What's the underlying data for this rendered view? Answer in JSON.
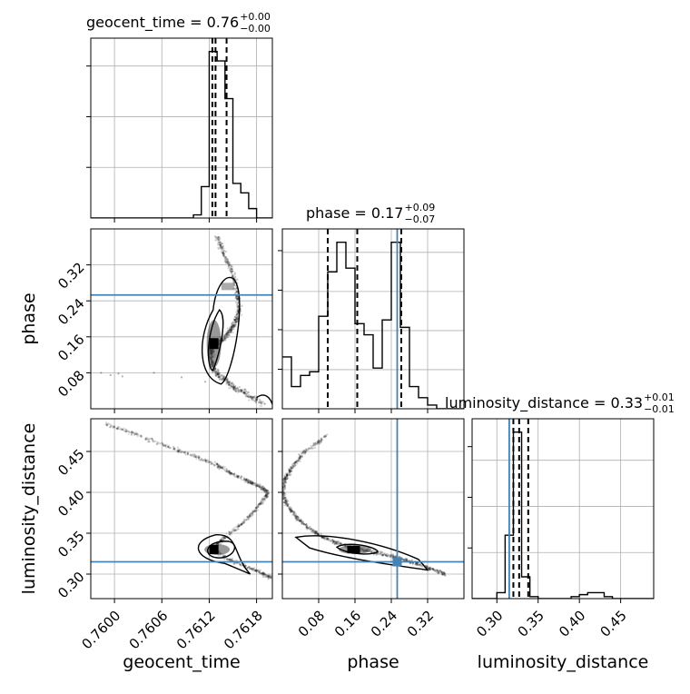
{
  "chart_data": {
    "type": "corner",
    "parameters": [
      "geocent_time",
      "phase",
      "luminosity_distance"
    ],
    "truths": {
      "geocent_time": null,
      "phase": 0.253,
      "luminosity_distance": 0.315
    },
    "truth_color": "#4682b4",
    "titles": {
      "geocent_time": {
        "name": "geocent_time = 0.76",
        "plus": "+0.00",
        "minus": "−0.00"
      },
      "phase": {
        "name": "phase = 0.17",
        "plus": "+0.09",
        "minus": "−0.07"
      },
      "luminosity_distance": {
        "name": "luminosity_distance = 0.33",
        "plus": "+0.01",
        "minus": "−0.01"
      }
    },
    "axis_labels": {
      "geocent_time": "geocent_time",
      "phase": "phase",
      "luminosity_distance": "luminosity_distance"
    },
    "ranges": {
      "geocent_time": [
        0.7597,
        0.762
      ],
      "phase": [
        0.0,
        0.4
      ],
      "luminosity_distance": [
        0.27,
        0.49
      ]
    },
    "ticks": {
      "geocent_time": {
        "values": [
          0.76,
          0.7606,
          0.7612,
          0.7618
        ],
        "labels": [
          "0.7600",
          "0.7606",
          "0.7612",
          "0.7618"
        ]
      },
      "phase": {
        "values": [
          0.08,
          0.16,
          0.24,
          0.32
        ],
        "labels": [
          "0.08",
          "0.16",
          "0.24",
          "0.32"
        ]
      },
      "luminosity_distance_y": {
        "values": [
          0.3,
          0.35,
          0.4,
          0.45
        ],
        "labels": [
          "0.30",
          "0.35",
          "0.40",
          "0.45"
        ]
      },
      "luminosity_distance_x": {
        "values": [
          0.3,
          0.35,
          0.4,
          0.45
        ],
        "labels": [
          "0.30",
          "0.35",
          "0.40",
          "0.45"
        ]
      }
    },
    "quantiles": {
      "geocent_time": [
        0.76124,
        0.76128,
        0.76142
      ],
      "phase": [
        0.1,
        0.165,
        0.262
      ],
      "luminosity_distance": [
        0.32,
        0.327,
        0.338
      ]
    },
    "hist_geocent_time": {
      "edges_start": 0.7597,
      "bin_width": 0.0001,
      "counts": [
        0,
        0,
        0,
        0,
        0,
        0,
        0,
        0,
        0,
        0,
        0,
        0,
        0,
        1,
        10,
        53,
        50,
        38,
        11,
        8,
        3,
        0,
        0
      ]
    },
    "hist_phase": {
      "edges_start": 0.0,
      "bin_width": 0.02,
      "counts": [
        14,
        6,
        9,
        10,
        25,
        37,
        45,
        38,
        23,
        20,
        11,
        24,
        45,
        22,
        6,
        3,
        1,
        0,
        0,
        0
      ]
    },
    "hist_luminosity_distance": {
      "edges_start": 0.27,
      "bin_width": 0.01,
      "counts": [
        0,
        0,
        0,
        3,
        32,
        84,
        11,
        1,
        0,
        0,
        0,
        0,
        1,
        2,
        3,
        3,
        1,
        0,
        0,
        0,
        0,
        0
      ]
    },
    "scatter_phase_vs_geocent_time": {
      "ridge_x": [
        0.7613,
        0.7614,
        0.7615,
        0.76155,
        0.76158,
        0.76153,
        0.76145,
        0.76135,
        0.76125,
        0.76122,
        0.76125,
        0.76135,
        0.7615,
        0.7617,
        0.7619
      ],
      "ridge_y": [
        0.38,
        0.34,
        0.3,
        0.26,
        0.22,
        0.19,
        0.17,
        0.15,
        0.14,
        0.12,
        0.09,
        0.07,
        0.05,
        0.03,
        0.01
      ],
      "sparse_x": [
        0.75983,
        0.75995,
        0.76005,
        0.7601,
        0.7605,
        0.76085,
        0.76115
      ],
      "sparse_y": [
        0.08,
        0.075,
        0.078,
        0.072,
        0.08,
        0.07,
        0.06
      ]
    },
    "scatter_ld_vs_geocent_time": {
      "ridge_x": [
        0.7599,
        0.7603,
        0.7607,
        0.761,
        0.7613,
        0.7615,
        0.7617,
        0.76185,
        0.76195,
        0.7618,
        0.7616,
        0.7614,
        0.76125,
        0.7614,
        0.76165,
        0.76185,
        0.76198
      ],
      "ridge_y": [
        0.483,
        0.47,
        0.455,
        0.445,
        0.433,
        0.422,
        0.413,
        0.407,
        0.4,
        0.38,
        0.36,
        0.345,
        0.332,
        0.32,
        0.31,
        0.302,
        0.296
      ]
    },
    "scatter_ld_vs_phase": {
      "ridge_x": [
        0.1,
        0.05,
        0.02,
        0.005,
        0.0,
        0.01,
        0.03,
        0.06,
        0.09,
        0.12,
        0.16,
        0.2,
        0.24,
        0.27,
        0.3,
        0.33,
        0.36
      ],
      "ridge_y": [
        0.47,
        0.45,
        0.43,
        0.415,
        0.4,
        0.385,
        0.37,
        0.355,
        0.345,
        0.338,
        0.332,
        0.327,
        0.322,
        0.317,
        0.312,
        0.306,
        0.3
      ]
    },
    "grid": true
  }
}
